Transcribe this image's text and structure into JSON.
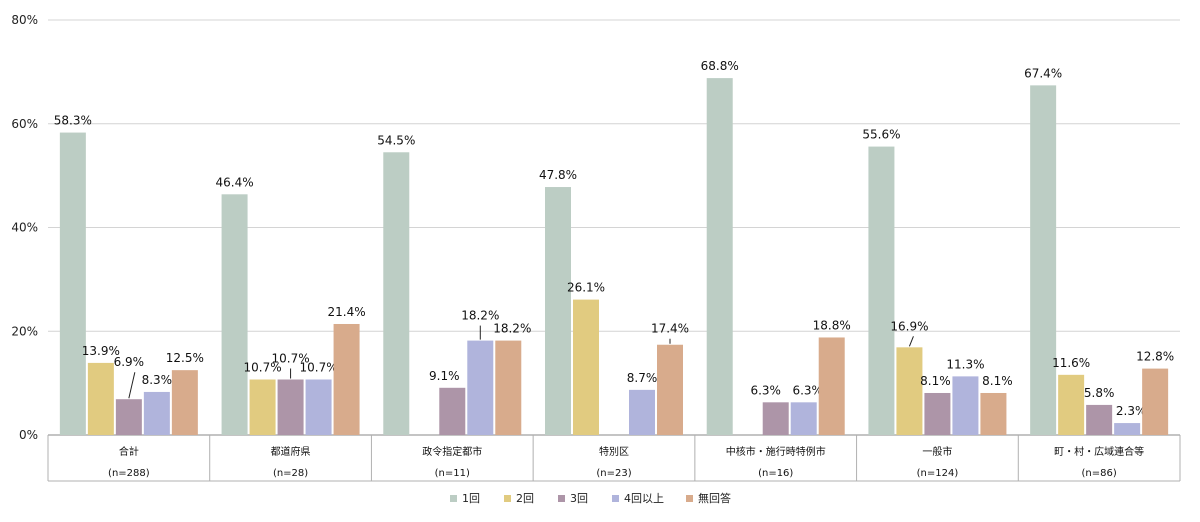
{
  "chart_data": {
    "type": "bar",
    "categories": [
      "合計",
      "都道府県",
      "政令指定都市",
      "特別区",
      "中核市・施行時特例市",
      "一般市",
      "町・村・広域連合等"
    ],
    "subcategories": [
      "(n=288)",
      "(n=28)",
      "(n=11)",
      "(n=23)",
      "(n=16)",
      "(n=124)",
      "(n=86)"
    ],
    "series": [
      {
        "name": "1回",
        "color": "#bccdc4",
        "values": [
          58.3,
          46.4,
          54.5,
          47.8,
          68.8,
          55.6,
          67.4
        ]
      },
      {
        "name": "2回",
        "color": "#e1cb80",
        "values": [
          13.9,
          10.7,
          null,
          26.1,
          null,
          16.9,
          11.6
        ]
      },
      {
        "name": "3回",
        "color": "#ad95a8",
        "values": [
          6.9,
          10.7,
          9.1,
          null,
          6.3,
          8.1,
          5.8
        ]
      },
      {
        "name": "4回以上",
        "color": "#b0b4dc",
        "values": [
          8.3,
          10.7,
          18.2,
          8.7,
          6.3,
          11.3,
          2.3
        ]
      },
      {
        "name": "無回答",
        "color": "#d8ab8c",
        "values": [
          12.5,
          21.4,
          18.2,
          17.4,
          18.8,
          8.1,
          12.8
        ]
      }
    ],
    "value_labels": [
      [
        "58.3%",
        "13.9%",
        "6.9%",
        "8.3%",
        "12.5%"
      ],
      [
        "46.4%",
        "10.7%",
        "10.7%",
        "10.7%",
        "21.4%"
      ],
      [
        "54.5%",
        "",
        "9.1%",
        "18.2%",
        "18.2%"
      ],
      [
        "47.8%",
        "26.1%",
        "",
        "8.7%",
        "17.4%"
      ],
      [
        "68.8%",
        "",
        "6.3%",
        "6.3%",
        "18.8%"
      ],
      [
        "55.6%",
        "16.9%",
        "8.1%",
        "11.3%",
        "8.1%"
      ],
      [
        "67.4%",
        "11.6%",
        "5.8%",
        "2.3%",
        "12.8%"
      ]
    ],
    "y_ticks": [
      "0%",
      "20%",
      "40%",
      "60%",
      "80%"
    ],
    "ylim": [
      0,
      80
    ],
    "grid": true,
    "legend": "bottom-center"
  }
}
